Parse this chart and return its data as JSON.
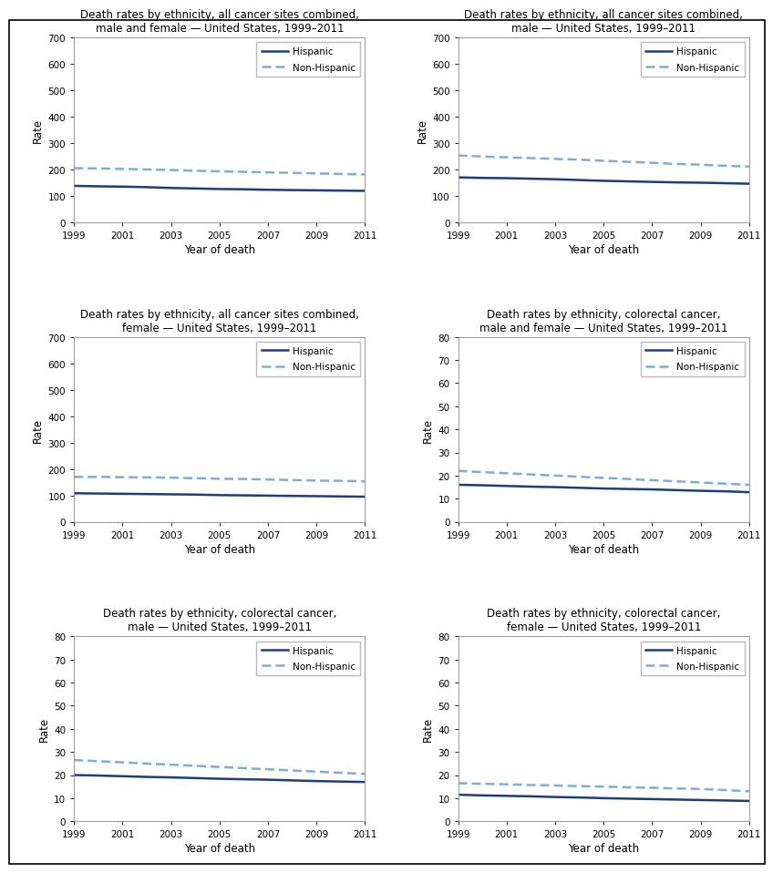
{
  "years": [
    1999,
    2000,
    2001,
    2002,
    2003,
    2004,
    2005,
    2006,
    2007,
    2008,
    2009,
    2010,
    2011
  ],
  "charts": [
    {
      "title": "Death rates by ethnicity, all cancer sites combined,\nmale and female — United States, 1999–2011",
      "ylim": [
        0,
        700
      ],
      "yticks": [
        0,
        100,
        200,
        300,
        400,
        500,
        600,
        700
      ],
      "hispanic": [
        138,
        136,
        135,
        133,
        130,
        128,
        126,
        125,
        123,
        122,
        121,
        120,
        119
      ],
      "nonhispanic": [
        205,
        204,
        202,
        200,
        198,
        195,
        193,
        191,
        189,
        187,
        185,
        183,
        181
      ]
    },
    {
      "title": "Death rates by ethnicity, all cancer sites combined,\nmale — United States, 1999–2011",
      "ylim": [
        0,
        700
      ],
      "yticks": [
        0,
        100,
        200,
        300,
        400,
        500,
        600,
        700
      ],
      "hispanic": [
        170,
        168,
        167,
        165,
        163,
        160,
        157,
        155,
        153,
        151,
        150,
        148,
        146
      ],
      "nonhispanic": [
        253,
        249,
        246,
        243,
        240,
        237,
        233,
        229,
        225,
        221,
        218,
        214,
        211
      ]
    },
    {
      "title": "Death rates by ethnicity, all cancer sites combined,\nfemale — United States, 1999–2011",
      "ylim": [
        0,
        700
      ],
      "yticks": [
        0,
        100,
        200,
        300,
        400,
        500,
        600,
        700
      ],
      "hispanic": [
        108,
        107,
        106,
        105,
        104,
        103,
        101,
        100,
        99,
        98,
        97,
        96,
        95
      ],
      "nonhispanic": [
        170,
        170,
        169,
        168,
        167,
        165,
        163,
        162,
        160,
        158,
        156,
        155,
        153
      ]
    },
    {
      "title": "Death rates by ethnicity, colorectal cancer,\nmale and female — United States, 1999–2011",
      "ylim": [
        0,
        80
      ],
      "yticks": [
        0,
        10,
        20,
        30,
        40,
        50,
        60,
        70,
        80
      ],
      "hispanic": [
        16.0,
        15.8,
        15.5,
        15.2,
        15.0,
        14.7,
        14.4,
        14.2,
        14.0,
        13.7,
        13.4,
        13.2,
        12.8
      ],
      "nonhispanic": [
        22.0,
        21.5,
        21.0,
        20.5,
        20.0,
        19.5,
        19.0,
        18.5,
        18.0,
        17.5,
        17.0,
        16.5,
        16.0
      ]
    },
    {
      "title": "Death rates by ethnicity, colorectal cancer,\nmale — United States, 1999–2011",
      "ylim": [
        0,
        80
      ],
      "yticks": [
        0,
        10,
        20,
        30,
        40,
        50,
        60,
        70,
        80
      ],
      "hispanic": [
        20.0,
        19.8,
        19.5,
        19.2,
        19.0,
        18.7,
        18.4,
        18.2,
        18.0,
        17.7,
        17.4,
        17.2,
        17.0
      ],
      "nonhispanic": [
        26.5,
        26.0,
        25.5,
        25.0,
        24.5,
        24.0,
        23.5,
        23.0,
        22.5,
        22.0,
        21.5,
        21.0,
        20.5
      ]
    },
    {
      "title": "Death rates by ethnicity, colorectal cancer,\nfemale — United States, 1999–2011",
      "ylim": [
        0,
        80
      ],
      "yticks": [
        0,
        10,
        20,
        30,
        40,
        50,
        60,
        70,
        80
      ],
      "hispanic": [
        11.5,
        11.2,
        11.0,
        10.8,
        10.5,
        10.3,
        10.0,
        9.8,
        9.6,
        9.4,
        9.2,
        9.0,
        8.8
      ],
      "nonhispanic": [
        16.5,
        16.2,
        16.0,
        15.7,
        15.5,
        15.2,
        15.0,
        14.7,
        14.5,
        14.2,
        14.0,
        13.5,
        13.0
      ]
    }
  ],
  "hispanic_color": "#1f3d7a",
  "nonhispanic_color": "#7bafd4",
  "hispanic_lw": 1.8,
  "nonhispanic_lw": 1.8,
  "xlabel": "Year of death",
  "ylabel": "Rate",
  "xticks": [
    1999,
    2001,
    2003,
    2005,
    2007,
    2009,
    2011
  ],
  "legend_hispanic": "Hispanic",
  "legend_nonhispanic": "Non-Hispanic",
  "title_color": "#000000",
  "background_color": "#ffffff",
  "outer_border_color": "#000000"
}
